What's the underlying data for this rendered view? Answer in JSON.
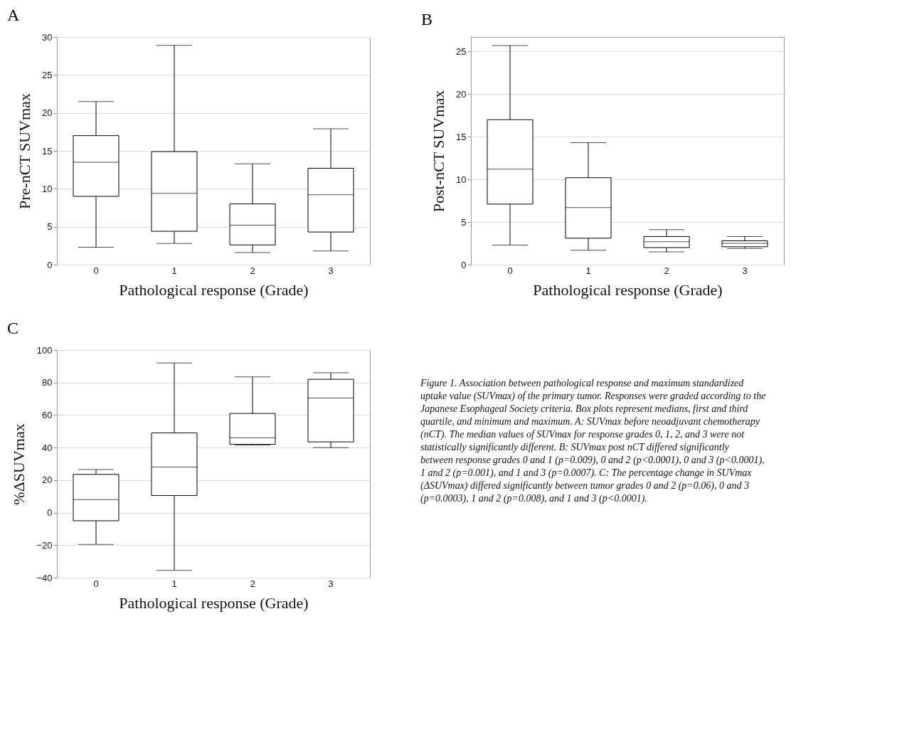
{
  "chart_data": [
    {
      "type": "box",
      "title": "A",
      "xlabel": "Pathological response (Grade)",
      "ylabel": "Pre-nCT SUVmax",
      "categories": [
        "0",
        "1",
        "2",
        "3"
      ],
      "ylim": [
        0,
        30
      ],
      "yticks": [
        0,
        5,
        10,
        15,
        20,
        25,
        30
      ],
      "grid": "y",
      "boxes": [
        {
          "low": 2.3,
          "q1": 9.0,
          "median": 13.5,
          "q3": 17.0,
          "high": 21.5
        },
        {
          "low": 2.8,
          "q1": 4.4,
          "median": 9.4,
          "q3": 14.9,
          "high": 28.9
        },
        {
          "low": 1.6,
          "q1": 2.6,
          "median": 5.2,
          "q3": 8.0,
          "high": 13.3
        },
        {
          "low": 1.8,
          "q1": 4.3,
          "median": 9.2,
          "q3": 12.7,
          "high": 17.9
        }
      ]
    },
    {
      "type": "box",
      "title": "B",
      "xlabel": "Pathological response (Grade)",
      "ylabel": "Post-nCT SUVmax",
      "categories": [
        "0",
        "1",
        "2",
        "3"
      ],
      "ylim": [
        0,
        26.7
      ],
      "yticks": [
        0,
        5,
        10,
        15,
        20,
        25
      ],
      "grid": "y",
      "boxes": [
        {
          "low": 2.3,
          "q1": 7.1,
          "median": 11.2,
          "q3": 17.0,
          "high": 25.7
        },
        {
          "low": 1.7,
          "q1": 3.1,
          "median": 6.7,
          "q3": 10.2,
          "high": 14.3
        },
        {
          "low": 1.5,
          "q1": 2.0,
          "median": 2.7,
          "q3": 3.3,
          "high": 4.1
        },
        {
          "low": 1.9,
          "q1": 2.1,
          "median": 2.5,
          "q3": 2.8,
          "high": 3.3
        }
      ]
    },
    {
      "type": "box",
      "title": "C",
      "xlabel": "Pathological response (Grade)",
      "ylabel": "%ΔSUVmax",
      "categories": [
        "0",
        "1",
        "2",
        "3"
      ],
      "ylim": [
        -40,
        100
      ],
      "yticks": [
        -40,
        -20,
        0,
        20,
        40,
        60,
        80,
        100
      ],
      "grid": "y",
      "boxes": [
        {
          "low": -19.5,
          "q1": -5,
          "median": 8,
          "q3": 23.5,
          "high": 26.5
        },
        {
          "low": -35.5,
          "q1": 10.5,
          "median": 28,
          "q3": 49,
          "high": 92
        },
        {
          "low": 41.5,
          "q1": 42,
          "median": 46,
          "q3": 61,
          "high": 83.5
        },
        {
          "low": 40,
          "q1": 43.5,
          "median": 70.5,
          "q3": 82,
          "high": 86
        }
      ]
    },
    {
      "type": "other",
      "annotations": [
        "Figure 1. Association between pathological response and maximum standardized uptake value (SUVmax) of the primary tumor. Responses were graded according to the Japanese Esophageal Society criteria. Box plots represent medians, first and third quartile, and minimum and maximum. A: SUVmax before neoadjuvant chemotherapy (nCT). The median values of SUVmax for response grades 0, 1, 2, and 3 were not statistically significantly different. B: SUVmax post nCT differed significantly between response grades 0 and 1 (p=0.009), 0 and 2 (p<0.0001), 0 and 3 (p<0.0001), 1 and 2 (p=0.001), and 1 and 3 (p=0.0007). C: The percentage change in SUVmax (ΔSUVmax) differed significantly between tumor grades 0 and 2 (p=0.06), 0 and 3 (p=0.0003), 1 and 2 (p=0.008), and 1 and 3 (p<0.0001)."
      ]
    }
  ]
}
